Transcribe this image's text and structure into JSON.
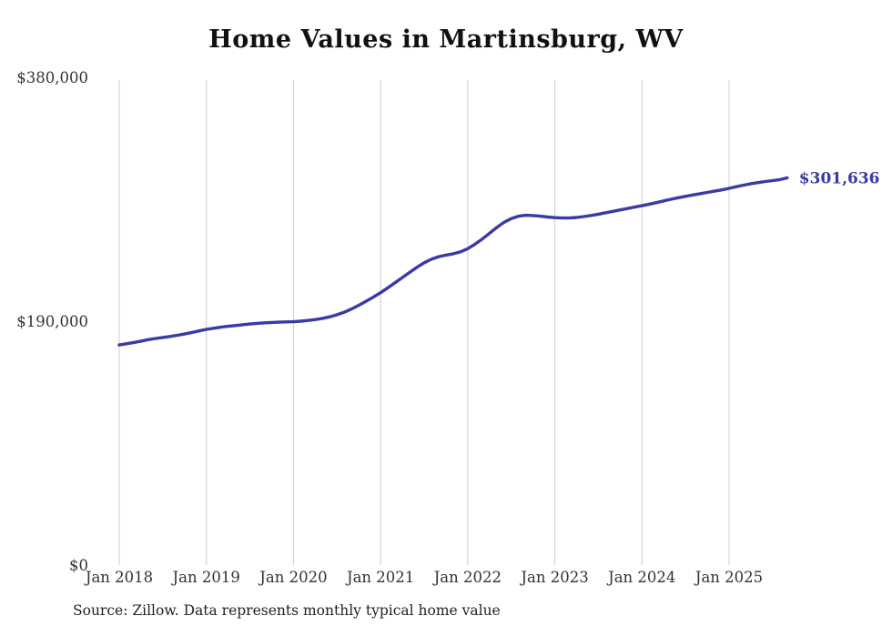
{
  "chart_data": {
    "type": "line",
    "title": "Home Values in Martinsburg, WV",
    "series_name": "Monthly typical home value",
    "start_month": "2018-01",
    "x_tick_labels": [
      "Jan 2018",
      "Jan 2019",
      "Jan 2020",
      "Jan 2021",
      "Jan 2022",
      "Jan 2023",
      "Jan 2024",
      "Jan 2025"
    ],
    "y_ticks": [
      {
        "value": 0,
        "label": "$0"
      },
      {
        "value": 190000,
        "label": "$190,000"
      },
      {
        "value": 380000,
        "label": "$380,000"
      }
    ],
    "ylim": [
      0,
      380000
    ],
    "grid": "vertical-only",
    "legend": "none",
    "end_label": "$301,636",
    "end_value": 301636,
    "line_color": "#3a3aa5",
    "grid_color": "#cccccc",
    "axis_text_color": "#333333",
    "values": [
      171500,
      172400,
      173400,
      174500,
      175600,
      176500,
      177300,
      178100,
      179000,
      180000,
      181200,
      182400,
      183600,
      184500,
      185300,
      186000,
      186600,
      187200,
      187800,
      188300,
      188700,
      189000,
      189200,
      189400,
      189600,
      190000,
      190600,
      191300,
      192200,
      193400,
      195000,
      197000,
      199500,
      202400,
      205500,
      208800,
      212200,
      216000,
      220000,
      224000,
      228000,
      232000,
      235500,
      238300,
      240300,
      241500,
      242500,
      244000,
      246500,
      250000,
      254000,
      258500,
      263000,
      267000,
      270000,
      271800,
      272500,
      272300,
      271800,
      271200,
      270700,
      270400,
      270400,
      270800,
      271500,
      272400,
      273400,
      274500,
      275600,
      276700,
      277800,
      278900,
      280000,
      281200,
      282400,
      283700,
      285000,
      286200,
      287300,
      288300,
      289300,
      290300,
      291300,
      292300,
      293500,
      294800,
      296000,
      297100,
      298000,
      298800,
      299500,
      300300,
      301636
    ]
  },
  "footer": {
    "source": "Source: Zillow. Data represents monthly typical home value"
  }
}
